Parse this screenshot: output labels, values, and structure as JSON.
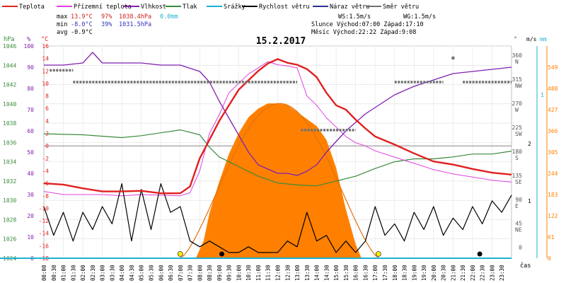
{
  "legend": [
    {
      "label": "Teplota",
      "color": "#e02020"
    },
    {
      "label": "Přízemní teplota",
      "color": "#e040e0"
    },
    {
      "label": "Vlhkost",
      "color": "#8020b0"
    },
    {
      "label": "Tlak",
      "color": "#3a8a3a"
    },
    {
      "label": "Srážky",
      "color": "#20b0d0"
    },
    {
      "label": "Rychlost větru",
      "color": "#000000"
    },
    {
      "label": "Náraz větru",
      "color": "#303090"
    },
    {
      "label": "Směr větru",
      "color": "#707070"
    }
  ],
  "stats": {
    "max_label": "max",
    "max_temp": "13.9°C",
    "max_hum": "97%",
    "max_press": "1038.4hPa",
    "max_rain": "0.0mm",
    "min_label": "min",
    "min_temp": "-8.0°C",
    "min_hum": "39%",
    "min_press": "1031.5hPa",
    "avg_label": "avg",
    "avg_temp": "-0.9°C"
  },
  "wind_info": {
    "ws": "WS:1.5m/s",
    "wg": "WG:1.5m/s"
  },
  "sun": {
    "line": "Slunce Východ:07:00  Západ:17:10"
  },
  "moon": {
    "line": "Měsíc  Východ:22:22  Západ:9:08"
  },
  "date": "15.2.2017",
  "axes": {
    "hpa_unit": "hPa",
    "pct_unit": "%",
    "c_unit": "°C",
    "deg_unit": "°",
    "ms_unit": "m/s",
    "mm_unit": "mm",
    "x_label": "čas",
    "hpa_ticks": [
      "1046",
      "1044",
      "1042",
      "1040",
      "1038",
      "1036",
      "1034",
      "1032",
      "1030",
      "1028",
      "1026",
      "1024"
    ],
    "pct_ticks": [
      "100",
      "90",
      "80",
      "70",
      "60",
      "50",
      "40",
      "30",
      "20",
      "10",
      "0"
    ],
    "c_ticks": [
      "16",
      "14",
      "12",
      "10",
      "8",
      "6",
      "4",
      "2",
      "0",
      "-2",
      "-4",
      "-6",
      "-8",
      "-10",
      "-12",
      "-14",
      "-16",
      "-18"
    ],
    "dir_ticks": [
      {
        "deg": "360",
        "dir": "N"
      },
      {
        "deg": "315",
        "dir": "NW"
      },
      {
        "deg": "270",
        "dir": "W"
      },
      {
        "deg": "225",
        "dir": "SW"
      },
      {
        "deg": "180",
        "dir": "S"
      },
      {
        "deg": "135",
        "dir": "SE"
      },
      {
        "deg": "90",
        "dir": "E"
      },
      {
        "deg": "45",
        "dir": "NE"
      },
      {
        "deg": "0",
        "dir": ""
      }
    ],
    "ms_ticks": [
      "2",
      "1"
    ],
    "mm_ticks": [
      "1"
    ],
    "rad_ticks": [
      "549",
      "488",
      "427",
      "366",
      "305",
      "244",
      "183",
      "122",
      "61",
      "0"
    ],
    "time_ticks": [
      "00:00",
      "00:30",
      "01:00",
      "01:30",
      "02:00",
      "02:30",
      "03:00",
      "03:30",
      "04:00",
      "04:30",
      "05:00",
      "05:30",
      "06:00",
      "06:30",
      "07:00",
      "07:30",
      "08:00",
      "08:30",
      "09:00",
      "09:30",
      "10:00",
      "10:30",
      "11:00",
      "11:30",
      "12:00",
      "12:30",
      "13:00",
      "13:30",
      "14:00",
      "14:30",
      "15:00",
      "15:30",
      "16:00",
      "16:30",
      "17:00",
      "17:30",
      "18:00",
      "18:30",
      "19:00",
      "19:30",
      "20:00",
      "20:30",
      "21:00",
      "21:30",
      "22:00",
      "22:30",
      "23:00",
      "23:30"
    ]
  },
  "colors": {
    "temp": "#e02020",
    "ground": "#e040e0",
    "hum": "#8020b0",
    "press": "#3a8a3a",
    "rain": "#20b0d0",
    "wind": "#000000",
    "gust": "#303090",
    "dir": "#707070",
    "solar": "#ff8000",
    "solar_curve": "#e07010",
    "stat_max": "#d02020",
    "stat_min": "#3030c0"
  },
  "chart_data": {
    "type": "line",
    "title": "15.2.2017",
    "x_range_hours": [
      0,
      24
    ],
    "temp_range_c": [
      -18,
      16
    ],
    "series": [
      {
        "name": "Teplota",
        "unit": "°C",
        "axis": "temp",
        "points": [
          [
            0,
            -6
          ],
          [
            1,
            -6.2
          ],
          [
            2,
            -6.8
          ],
          [
            3,
            -7.3
          ],
          [
            4,
            -7.3
          ],
          [
            5,
            -7.2
          ],
          [
            6,
            -7.6
          ],
          [
            7,
            -7.6
          ],
          [
            7.5,
            -6.5
          ],
          [
            8,
            -2
          ],
          [
            8.5,
            1
          ],
          [
            9,
            4
          ],
          [
            9.5,
            6.5
          ],
          [
            10,
            9
          ],
          [
            10.5,
            10.5
          ],
          [
            11,
            12
          ],
          [
            11.5,
            13.2
          ],
          [
            12,
            13.9
          ],
          [
            12.5,
            13.3
          ],
          [
            13,
            13
          ],
          [
            13.5,
            12.3
          ],
          [
            14,
            11
          ],
          [
            14.5,
            8.5
          ],
          [
            15,
            6.5
          ],
          [
            15.5,
            5.8
          ],
          [
            16,
            4.2
          ],
          [
            16.5,
            2.8
          ],
          [
            17,
            1.5
          ],
          [
            18,
            0.2
          ],
          [
            19,
            -1.2
          ],
          [
            20,
            -2.5
          ],
          [
            21,
            -3
          ],
          [
            22,
            -3.7
          ],
          [
            23,
            -4.3
          ],
          [
            24,
            -4.6
          ]
        ]
      },
      {
        "name": "Přízemní teplota",
        "unit": "°C",
        "axis": "temp",
        "points": [
          [
            0,
            -7.3
          ],
          [
            1,
            -7.8
          ],
          [
            2,
            -7.8
          ],
          [
            3,
            -7.8
          ],
          [
            4,
            -8.0
          ],
          [
            5,
            -7.8
          ],
          [
            6,
            -7.9
          ],
          [
            7,
            -8.0
          ],
          [
            7.5,
            -7.5
          ],
          [
            8,
            -4
          ],
          [
            8.5,
            2
          ],
          [
            9,
            5
          ],
          [
            9.5,
            8.5
          ],
          [
            10,
            10
          ],
          [
            10.5,
            11.5
          ],
          [
            11,
            12.5
          ],
          [
            11.5,
            13.5
          ],
          [
            12,
            13
          ],
          [
            12.5,
            12.8
          ],
          [
            13,
            12.5
          ],
          [
            13.5,
            8
          ],
          [
            14,
            6.5
          ],
          [
            14.5,
            4.5
          ],
          [
            15,
            3
          ],
          [
            15.5,
            1.5
          ],
          [
            16,
            0.5
          ],
          [
            16.5,
            0
          ],
          [
            17,
            -0.8
          ],
          [
            18,
            -1.8
          ],
          [
            19,
            -2.8
          ],
          [
            20,
            -3.8
          ],
          [
            21,
            -4.5
          ],
          [
            22,
            -5
          ],
          [
            23,
            -5.5
          ],
          [
            24,
            -5.8
          ]
        ]
      },
      {
        "name": "Vlhkost",
        "unit": "%",
        "axis": "pct",
        "points": [
          [
            0,
            91
          ],
          [
            1,
            91
          ],
          [
            2,
            92
          ],
          [
            2.5,
            97
          ],
          [
            3,
            92
          ],
          [
            4,
            92
          ],
          [
            5,
            92
          ],
          [
            6,
            91
          ],
          [
            7,
            91
          ],
          [
            8,
            88
          ],
          [
            8.5,
            83
          ],
          [
            9,
            74
          ],
          [
            9.5,
            66
          ],
          [
            10,
            58
          ],
          [
            10.5,
            50
          ],
          [
            11,
            44
          ],
          [
            11.5,
            42
          ],
          [
            12,
            40
          ],
          [
            12.5,
            40
          ],
          [
            13,
            39
          ],
          [
            13.5,
            41
          ],
          [
            14,
            44
          ],
          [
            14.5,
            50
          ],
          [
            15,
            55
          ],
          [
            15.5,
            60
          ],
          [
            16,
            64
          ],
          [
            16.5,
            68
          ],
          [
            17,
            71
          ],
          [
            18,
            77
          ],
          [
            19,
            81
          ],
          [
            20,
            84
          ],
          [
            21,
            87
          ],
          [
            22,
            88
          ],
          [
            23,
            89
          ],
          [
            24,
            90
          ]
        ]
      },
      {
        "name": "Tlak",
        "unit": "hPa",
        "axis": "hpa",
        "points": [
          [
            0,
            1036.9
          ],
          [
            2,
            1036.8
          ],
          [
            4,
            1036.5
          ],
          [
            5,
            1036.7
          ],
          [
            6,
            1037.0
          ],
          [
            7,
            1037.3
          ],
          [
            8,
            1036.8
          ],
          [
            8.5,
            1035.5
          ],
          [
            9,
            1034.5
          ],
          [
            10,
            1033.5
          ],
          [
            11,
            1032.5
          ],
          [
            12,
            1031.8
          ],
          [
            13,
            1031.6
          ],
          [
            14,
            1031.5
          ],
          [
            15,
            1032.0
          ],
          [
            16,
            1032.5
          ],
          [
            17,
            1033.3
          ],
          [
            18,
            1034.0
          ],
          [
            19,
            1034.3
          ],
          [
            20,
            1034.3
          ],
          [
            21,
            1034.5
          ],
          [
            22,
            1034.8
          ],
          [
            23,
            1034.8
          ],
          [
            24,
            1035.1
          ]
        ]
      },
      {
        "name": "Rychlost větru",
        "unit": "m/s",
        "axis": "ms",
        "points": [
          [
            0,
            0.9
          ],
          [
            0.5,
            0.4
          ],
          [
            1,
            0.8
          ],
          [
            1.5,
            0.3
          ],
          [
            2,
            0.8
          ],
          [
            2.5,
            0.5
          ],
          [
            3,
            0.9
          ],
          [
            3.5,
            0.6
          ],
          [
            4,
            1.3
          ],
          [
            4.5,
            0.3
          ],
          [
            5,
            1.2
          ],
          [
            5.5,
            0.5
          ],
          [
            6,
            1.3
          ],
          [
            6.5,
            0.8
          ],
          [
            7,
            0.9
          ],
          [
            7.5,
            0.3
          ],
          [
            8,
            0.2
          ],
          [
            8.5,
            0.3
          ],
          [
            9,
            0.2
          ],
          [
            9.5,
            0.1
          ],
          [
            10,
            0.1
          ],
          [
            10.5,
            0.2
          ],
          [
            11,
            0.1
          ],
          [
            12,
            0.1
          ],
          [
            12.5,
            0.3
          ],
          [
            13,
            0.2
          ],
          [
            13.5,
            0.8
          ],
          [
            14,
            0.3
          ],
          [
            14.5,
            0.4
          ],
          [
            15,
            0.1
          ],
          [
            15.5,
            0.3
          ],
          [
            16,
            0.1
          ],
          [
            16.5,
            0.3
          ],
          [
            17,
            0.9
          ],
          [
            17.5,
            0.4
          ],
          [
            18,
            0.6
          ],
          [
            18.5,
            0.3
          ],
          [
            19,
            0.8
          ],
          [
            19.5,
            0.5
          ],
          [
            20,
            0.9
          ],
          [
            20.5,
            0.4
          ],
          [
            21,
            0.7
          ],
          [
            21.5,
            0.5
          ],
          [
            22,
            0.9
          ],
          [
            22.5,
            0.6
          ],
          [
            23,
            1.0
          ],
          [
            23.5,
            0.8
          ],
          [
            24,
            1.1
          ]
        ]
      },
      {
        "name": "Směr větru",
        "unit": "°",
        "axis": "deg",
        "points": [
          [
            0.3,
            337
          ],
          [
            1,
            337
          ],
          [
            1.5,
            315
          ],
          [
            5,
            315
          ],
          [
            9,
            315
          ],
          [
            13,
            315
          ],
          [
            13.2,
            225
          ],
          [
            16,
            225
          ],
          [
            18,
            315
          ],
          [
            20.5,
            315
          ],
          [
            21.5,
            315
          ],
          [
            24,
            315
          ]
        ]
      },
      {
        "name": "Sluneční záření",
        "unit": "W/m²",
        "axis": "rad",
        "points": [
          [
            7.8,
            0
          ],
          [
            8.2,
            50
          ],
          [
            8.5,
            130
          ],
          [
            9,
            220
          ],
          [
            9.5,
            300
          ],
          [
            10,
            360
          ],
          [
            10.5,
            405
          ],
          [
            11,
            430
          ],
          [
            11.5,
            445
          ],
          [
            12,
            445
          ],
          [
            12.5,
            440
          ],
          [
            13,
            420
          ],
          [
            13.5,
            400
          ],
          [
            14,
            380
          ],
          [
            14.5,
            340
          ],
          [
            15,
            260
          ],
          [
            15.5,
            140
          ],
          [
            16,
            40
          ],
          [
            16.3,
            0
          ]
        ]
      }
    ],
    "notes": [
      "max 13.9°C 97% 1038.4hPa 0.0mm",
      "min -8.0°C 39% 1031.5hPa",
      "avg -0.9°C"
    ]
  }
}
